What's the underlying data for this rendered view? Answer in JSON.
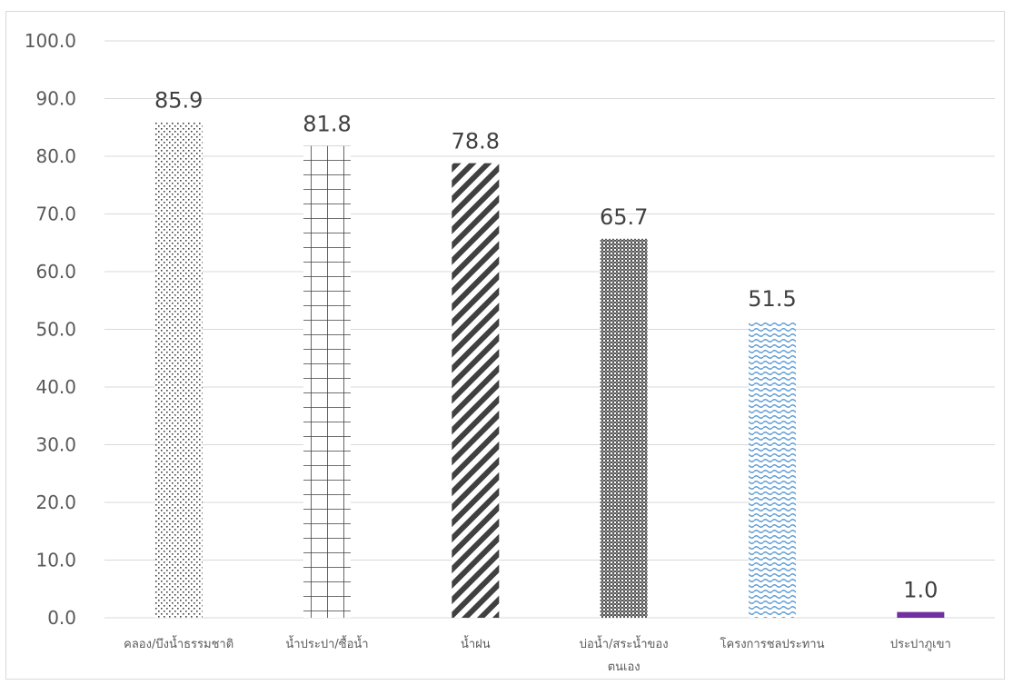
{
  "chart_data": {
    "type": "bar",
    "title": "",
    "xlabel": "",
    "ylabel": "",
    "categories": [
      [
        "คลอง/บึงน้ำธรรมชาติ"
      ],
      [
        "น้ำประปา/ซื้อน้ำ"
      ],
      [
        "น้ำฝน"
      ],
      [
        "บ่อน้ำ/สระน้ำของ",
        "ตนเอง"
      ],
      [
        "โครงการชลประทาน"
      ],
      [
        "ประปาภูเขา"
      ]
    ],
    "values": [
      85.9,
      81.8,
      78.8,
      65.7,
      51.5,
      1.0
    ],
    "value_labels": [
      "85.9",
      "81.8",
      "78.8",
      "65.7",
      "51.5",
      "1.0"
    ],
    "ylim": [
      0,
      100
    ],
    "yticks": [
      "0.0",
      "10.0",
      "20.0",
      "30.0",
      "40.0",
      "50.0",
      "60.0",
      "70.0",
      "80.0",
      "90.0",
      "100.0"
    ],
    "grid": true,
    "legend": "none",
    "bar_patterns": [
      "dots",
      "grid",
      "diagonal-stripes",
      "checker",
      "waves",
      "solid"
    ],
    "colors": {
      "pattern_dark": "#404040",
      "waves": "#5b9bd5",
      "solid_bar": "#7030a0",
      "gridline": "#d9d9d9"
    }
  }
}
